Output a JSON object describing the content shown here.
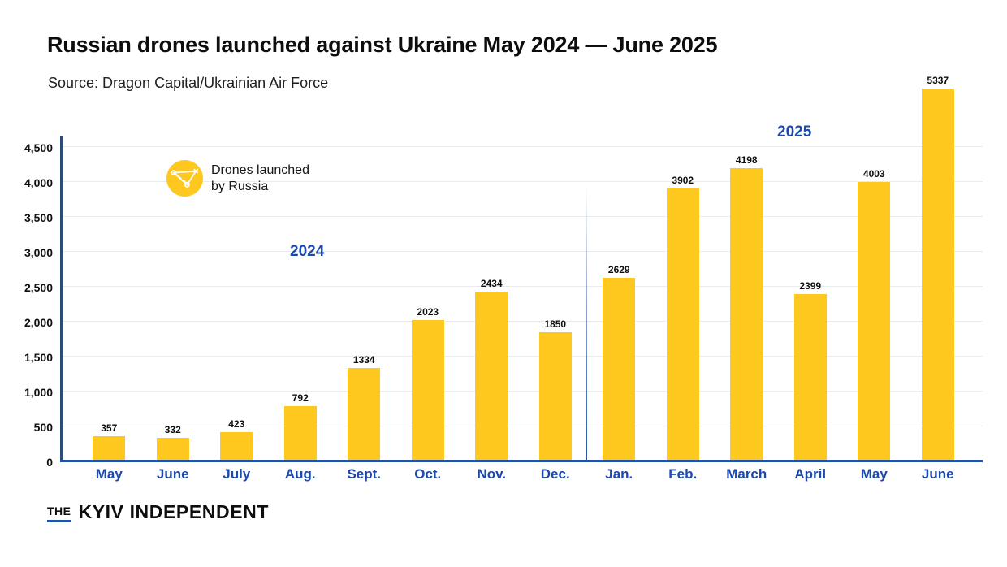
{
  "header": {
    "title": "Russian drones launched against Ukraine May 2024 — June 2025",
    "source": "Source: Dragon Capital/Ukrainian Air Force"
  },
  "legend": {
    "icon": "drone-icon",
    "line1": "Drones launched",
    "line2": "by Russia"
  },
  "chart_data": {
    "type": "bar",
    "title": "Russian drones launched against Ukraine May 2024 — June 2025",
    "series_label": "Drones launched by Russia",
    "categories": [
      "May",
      "June",
      "July",
      "Aug.",
      "Sept.",
      "Oct.",
      "Nov.",
      "Dec.",
      "Jan.",
      "Feb.",
      "March",
      "April",
      "May",
      "June"
    ],
    "values": [
      357,
      332,
      423,
      792,
      1334,
      2023,
      2434,
      1850,
      2629,
      3902,
      4198,
      2399,
      4003,
      5337
    ],
    "yticks": [
      0,
      500,
      1000,
      1500,
      2000,
      2500,
      3000,
      3500,
      4000,
      4500
    ],
    "ytick_labels": [
      "0",
      "500",
      "1,000",
      "1,500",
      "2,000",
      "2,500",
      "3,000",
      "3,500",
      "4,000",
      "4,500"
    ],
    "ylim": [
      0,
      5560
    ],
    "grid": "horizontal",
    "legend_position": "top-left",
    "separator_after_index": 7,
    "annotations": [
      {
        "text": "2024",
        "group_months": "May–Dec."
      },
      {
        "text": "2025",
        "group_months": "Jan.–June"
      }
    ],
    "colors": {
      "bar": "#FFC81F",
      "axis_x": "#2253A6",
      "axis_y": "#2B4F74",
      "grid": "#E9EBEE",
      "label_blue": "#1C49AE",
      "text": "#111111"
    }
  },
  "footer": {
    "logo_the": "THE",
    "logo_name": "KYIV INDEPENDENT"
  }
}
